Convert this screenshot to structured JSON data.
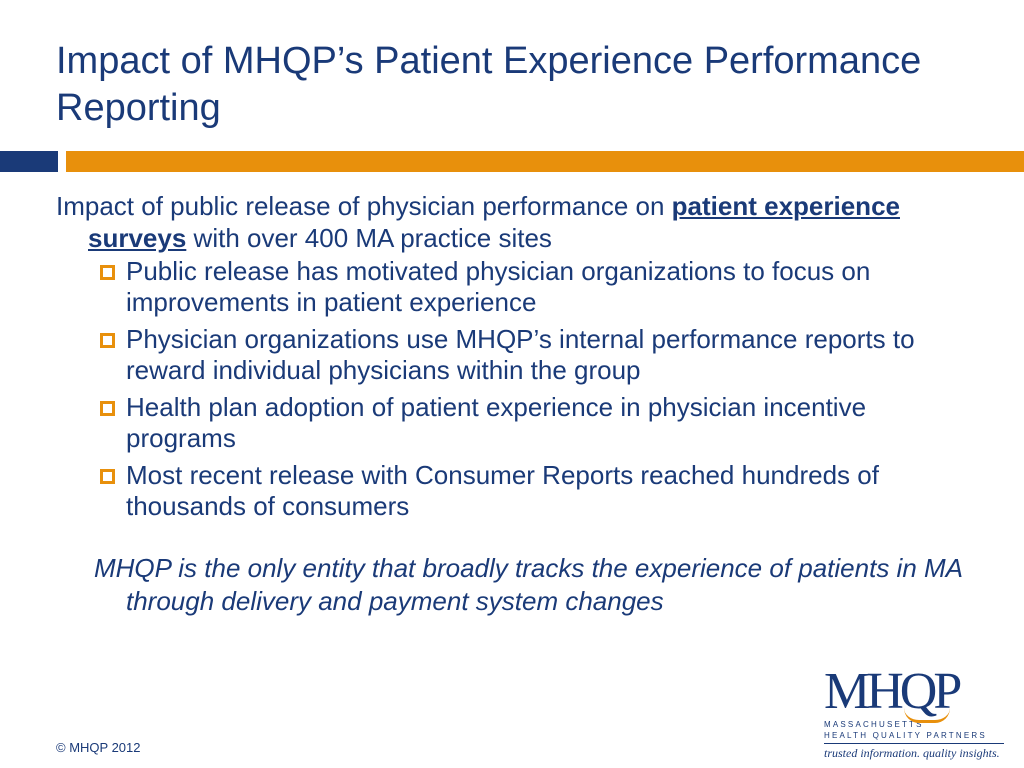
{
  "slide": {
    "title": "Impact of MHQP’s Patient Experience Performance Reporting",
    "lead": {
      "text_before": "Impact of public release of physician performance on ",
      "emphasis": "patient experience surveys",
      "text_after": " with over 400 MA practice sites"
    },
    "bullets": [
      "Public release has motivated physician organizations to focus on improvements in patient experience",
      "Physician organizations use MHQP’s internal performance reports to reward individual physicians within the group",
      "Health plan adoption of patient experience in physician incentive programs",
      "Most recent release with Consumer Reports reached hundreds of thousands of consumers"
    ],
    "closing": "MHQP is the only entity that broadly tracks the experience of patients in MA through delivery and payment system changes",
    "copyright": "© MHQP 2012"
  },
  "logo": {
    "mark": "MHQP",
    "line1": "MASSACHUSETTS",
    "line2": "HEALTH QUALITY PARTNERS",
    "tagline": "trusted information. quality insights."
  },
  "colors": {
    "navy": "#1a3a78",
    "orange": "#e8900c"
  }
}
